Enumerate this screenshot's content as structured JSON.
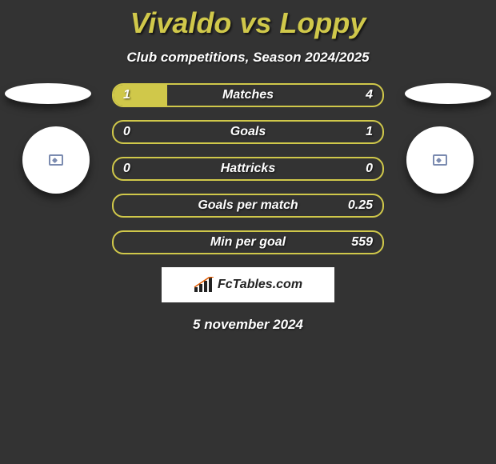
{
  "title": "Vivaldo vs Loppy",
  "subtitle": "Club competitions, Season 2024/2025",
  "date": "5 november 2024",
  "brand": "FcTables.com",
  "colors": {
    "accent": "#d0c84a",
    "background": "#333333",
    "text": "#ffffff",
    "panel": "#ffffff"
  },
  "stats": [
    {
      "label": "Matches",
      "left_value": "1",
      "right_value": "4",
      "left_fill_pct": 20,
      "right_fill_pct": 0
    },
    {
      "label": "Goals",
      "left_value": "0",
      "right_value": "1",
      "left_fill_pct": 0,
      "right_fill_pct": 0
    },
    {
      "label": "Hattricks",
      "left_value": "0",
      "right_value": "0",
      "left_fill_pct": 0,
      "right_fill_pct": 0
    },
    {
      "label": "Goals per match",
      "left_value": "",
      "right_value": "0.25",
      "left_fill_pct": 0,
      "right_fill_pct": 0
    },
    {
      "label": "Min per goal",
      "left_value": "",
      "right_value": "559",
      "left_fill_pct": 0,
      "right_fill_pct": 0
    }
  ]
}
